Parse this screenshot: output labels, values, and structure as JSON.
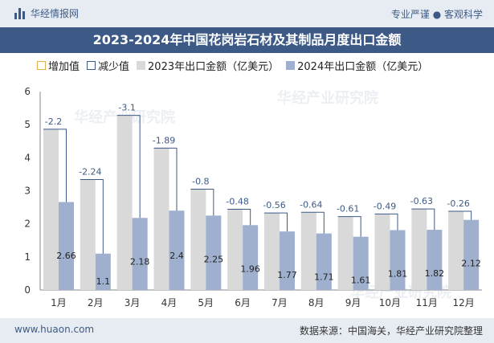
{
  "header": {
    "brand": "华经情报网",
    "tagline": "专业严谨 ● 客观科学",
    "title": "2023-2024年中国花岗岩石材及其制品月度出口金额"
  },
  "legend": {
    "increase": "增加值",
    "decrease": "减少值",
    "series_2023": "2023年出口金额（亿美元）",
    "series_2024": "2024年出口金额（亿美元）"
  },
  "footer": {
    "site": "www.huaon.com",
    "source": "数据来源：中国海关，华经产业研究院整理"
  },
  "watermark": "华经产业研究院",
  "colors": {
    "bar_2023": "#d9d9d9",
    "bar_2024": "#9fb0cf",
    "decrease_line": "#3d5a86",
    "increase_line": "#e0b04a",
    "title_bg": "#3d5a86"
  },
  "chart_data": {
    "type": "bar",
    "title": "2023-2024年中国花岗岩石材及其制品月度出口金额",
    "categories": [
      "1月",
      "2月",
      "3月",
      "4月",
      "5月",
      "6月",
      "7月",
      "8月",
      "9月",
      "10月",
      "11月",
      "12月"
    ],
    "series": [
      {
        "name": "2023年出口金额（亿美元）",
        "values": [
          4.86,
          3.34,
          5.28,
          4.29,
          3.05,
          2.44,
          2.33,
          2.35,
          2.22,
          2.3,
          2.45,
          2.38
        ]
      },
      {
        "name": "2024年出口金额（亿美元）",
        "values": [
          2.66,
          1.1,
          2.18,
          2.4,
          2.25,
          1.96,
          1.77,
          1.71,
          1.61,
          1.81,
          1.82,
          2.12
        ]
      }
    ],
    "change": [
      -2.2,
      -2.24,
      -3.1,
      -1.89,
      -0.8,
      -0.48,
      -0.56,
      -0.64,
      -0.61,
      -0.49,
      -0.63,
      -0.26
    ],
    "value_labels_2024": [
      "2.66",
      "1.1",
      "2.18",
      "2.4",
      "2.25",
      "1.96",
      "1.77",
      "1.71",
      "1.61",
      "1.81",
      "1.82",
      "2.12"
    ],
    "change_labels": [
      "-2.2",
      "-2.24",
      "-3.1",
      "-1.89",
      "-0.8",
      "-0.48",
      "-0.56",
      "-0.64",
      "-0.61",
      "-0.49",
      "-0.63",
      "-0.26"
    ],
    "y_ticks": [
      "0",
      "1",
      "2",
      "3",
      "4",
      "5",
      "6"
    ],
    "ylim": [
      0,
      6
    ],
    "xlabel": "",
    "ylabel": ""
  }
}
